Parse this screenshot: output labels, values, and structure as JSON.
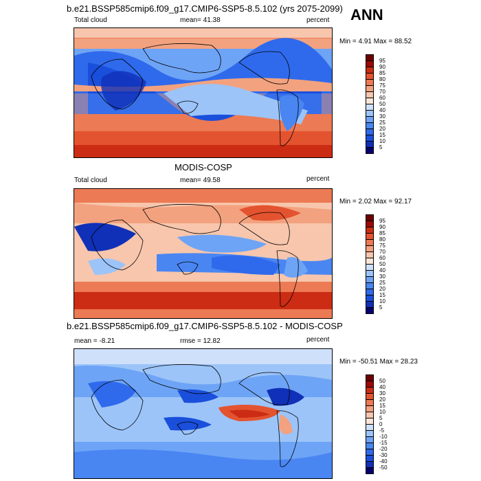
{
  "header": {
    "title": "b.e21.BSSP585cmip6.f09_g17.CMIP6-SSP5-8.5.102 (yrs 2075-2099)",
    "season": "ANN"
  },
  "panels": [
    {
      "id": "model",
      "variable": "Total cloud",
      "stat1": "mean=  41.38",
      "units": "percent",
      "range": "Min =   4.91 Max =  88.52",
      "legend": [
        "95",
        "90",
        "85",
        "80",
        "75",
        "70",
        "60",
        "50",
        "40",
        "30",
        "25",
        "20",
        "15",
        "10",
        "5"
      ]
    },
    {
      "id": "obs",
      "subtitle": "MODIS-COSP",
      "variable": "Total cloud",
      "stat1": "mean=  49.58",
      "units": "percent",
      "range": "Min =   2.02 Max =  92.17",
      "legend": [
        "95",
        "90",
        "85",
        "80",
        "75",
        "70",
        "60",
        "50",
        "40",
        "30",
        "25",
        "20",
        "15",
        "10",
        "5"
      ]
    },
    {
      "id": "diff",
      "subtitle": "b.e21.BSSP585cmip6.f09_g17.CMIP6-SSP5-8.5.102 - MODIS-COSP",
      "stat1": "mean =  -8.21",
      "stat2": "rmse =  12.82",
      "units": "percent",
      "range": "Min = -50.51 Max =  28.23",
      "legend": [
        "50",
        "40",
        "30",
        "20",
        "15",
        "10",
        "5",
        "0",
        "-5",
        "-10",
        "-15",
        "-20",
        "-30",
        "-40",
        "-50"
      ]
    }
  ],
  "colors": {
    "abs_scale": [
      "#08006e",
      "#1030b8",
      "#1a4fdc",
      "#2f6aec",
      "#4a86f2",
      "#6ea4f6",
      "#9cc4f8",
      "#cfe0fb",
      "#fbe6da",
      "#f7c6ad",
      "#f3a27f",
      "#ec7a54",
      "#e4532f",
      "#cc2c14",
      "#9b0a05",
      "#6e0000"
    ],
    "diff_scale": [
      "#08006e",
      "#1030b8",
      "#1a4fdc",
      "#2f6aec",
      "#4a86f2",
      "#6ea4f6",
      "#9cc4f8",
      "#cfe0fb",
      "#fbe6da",
      "#f7c6ad",
      "#f3a27f",
      "#ec7a54",
      "#e4532f",
      "#cc2c14",
      "#9b0a05",
      "#6e0000"
    ]
  }
}
